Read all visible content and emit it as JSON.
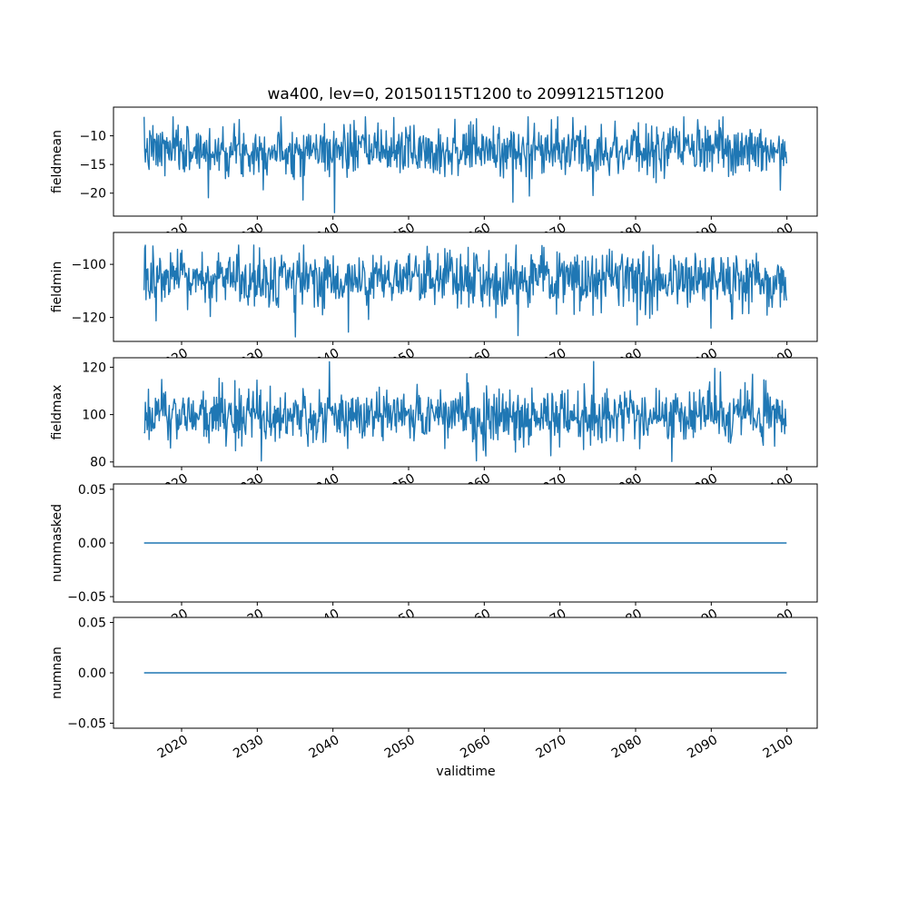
{
  "figure": {
    "title": "wa400, lev=0, 20150115T1200 to 20991215T1200",
    "xlabel": "validtime",
    "line_color": "#1f77b4",
    "background_color": "#ffffff",
    "axes_color": "#000000",
    "xlim": [
      2011,
      2104
    ],
    "xticks": [
      2020,
      2030,
      2040,
      2050,
      2060,
      2070,
      2080,
      2090,
      2100
    ],
    "xtick_labels": [
      "2020",
      "2030",
      "2040",
      "2050",
      "2060",
      "2070",
      "2080",
      "2090",
      "2100"
    ]
  },
  "chart_data": [
    {
      "type": "line",
      "name": "fieldmean",
      "ylabel": "fieldmean",
      "x_start": 2015.04,
      "x_end": 2099.96,
      "n_points": 1020,
      "ylim": [
        -24,
        -5
      ],
      "yticks": [
        -10,
        -15,
        -20
      ],
      "ytick_labels": [
        "−10",
        "−15",
        "−20"
      ],
      "series": {
        "kind": "noise",
        "seed": 7,
        "mean": -12.5,
        "std": 2.2,
        "clip_min": -23.4,
        "clip_max": -6.7,
        "spikes": [
          {
            "x": 2023.5,
            "v": -20.8
          },
          {
            "x": 2036.0,
            "v": -21.2
          },
          {
            "x": 2040.2,
            "v": -23.4
          },
          {
            "x": 2063.8,
            "v": -21.6
          },
          {
            "x": 2066.0,
            "v": -20.5
          }
        ]
      },
      "summary": "dense noisy line oscillating around −12.5 (mostly −8 to −18), isolated dips to about −23 near 2040"
    },
    {
      "type": "line",
      "name": "fieldmin",
      "ylabel": "fieldmin",
      "x_start": 2015.04,
      "x_end": 2099.96,
      "n_points": 1020,
      "ylim": [
        -129,
        -88
      ],
      "yticks": [
        -100,
        -120
      ],
      "ytick_labels": [
        "−100",
        "−120"
      ],
      "series": {
        "kind": "noise",
        "seed": 13,
        "mean": -106,
        "std": 5.5,
        "clip_min": -127.5,
        "clip_max": -92.8,
        "spikes": [
          {
            "x": 2035.0,
            "v": -127.3
          },
          {
            "x": 2042.0,
            "v": -125.5
          },
          {
            "x": 2064.5,
            "v": -126.8
          },
          {
            "x": 2090.0,
            "v": -124.0
          }
        ]
      },
      "summary": "dense noisy line around −106 spanning roughly −93 to −125, occasional dips near −127"
    },
    {
      "type": "line",
      "name": "fieldmax",
      "ylabel": "fieldmax",
      "x_start": 2015.04,
      "x_end": 2099.96,
      "n_points": 1020,
      "ylim": [
        78,
        124
      ],
      "yticks": [
        120,
        100,
        80
      ],
      "ytick_labels": [
        "120",
        "100",
        "80"
      ],
      "series": {
        "kind": "noise",
        "seed": 21,
        "mean": 99.5,
        "std": 6,
        "clip_min": 80.2,
        "clip_max": 122.4,
        "spikes": [
          {
            "x": 2030.5,
            "v": 80.4
          },
          {
            "x": 2039.5,
            "v": 122.3
          },
          {
            "x": 2059.0,
            "v": 80.5
          },
          {
            "x": 2090.5,
            "v": 119.5
          }
        ]
      },
      "summary": "dense noisy line around 100 spanning roughly 82 to 118, peak near 122 around 2040"
    },
    {
      "type": "line",
      "name": "nummasked",
      "ylabel": "nummasked",
      "x_start": 2015.04,
      "x_end": 2099.96,
      "n_points": 1020,
      "ylim": [
        -0.055,
        0.055
      ],
      "yticks": [
        0.05,
        0,
        -0.05
      ],
      "ytick_labels": [
        "0.05",
        "0.00",
        "−0.05"
      ],
      "series": {
        "kind": "constant",
        "value": 0
      },
      "summary": "perfectly flat line at 0.00 for the whole period"
    },
    {
      "type": "line",
      "name": "numnan",
      "ylabel": "numnan",
      "x_start": 2015.04,
      "x_end": 2099.96,
      "n_points": 1020,
      "ylim": [
        -0.055,
        0.055
      ],
      "yticks": [
        0.05,
        0,
        -0.05
      ],
      "ytick_labels": [
        "0.05",
        "0.00",
        "−0.05"
      ],
      "series": {
        "kind": "constant",
        "value": 0
      },
      "summary": "perfectly flat line at 0.00 for the whole period"
    }
  ]
}
